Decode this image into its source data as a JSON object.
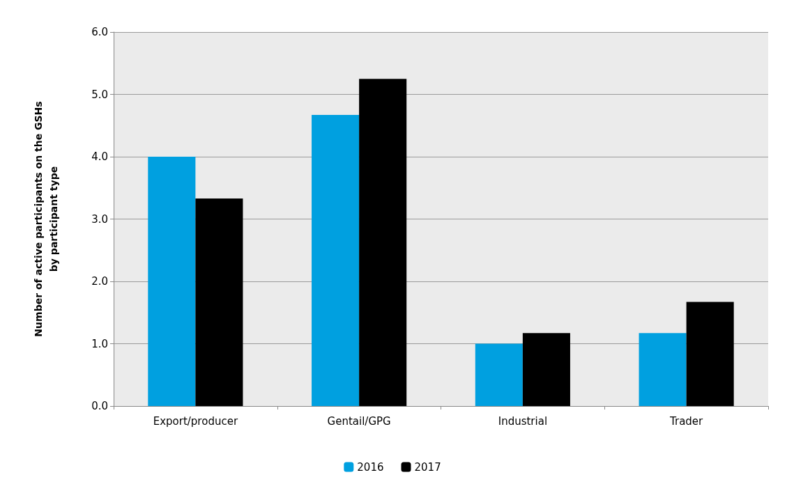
{
  "chart_data": {
    "type": "bar",
    "ylabel": "Number of active participants on the GSHs\nby participant type",
    "categories": [
      "Export/producer",
      "Gentail/GPG",
      "Industrial",
      "Trader"
    ],
    "series": [
      {
        "name": "2016",
        "color": "#00a0e0",
        "values": [
          4.0,
          4.67,
          1.0,
          1.17
        ]
      },
      {
        "name": "2017",
        "color": "#000000",
        "values": [
          3.33,
          5.25,
          1.17,
          1.67
        ]
      }
    ],
    "ylim": [
      0,
      6
    ],
    "yticks": [
      {
        "value": 0,
        "label": "0.0"
      },
      {
        "value": 1,
        "label": "1.0"
      },
      {
        "value": 2,
        "label": "2.0"
      },
      {
        "value": 3,
        "label": "3.0"
      },
      {
        "value": 4,
        "label": "4.0"
      },
      {
        "value": 5,
        "label": "5.0"
      },
      {
        "value": 6,
        "label": "6.0"
      }
    ],
    "grid": "y",
    "legend": "bottom"
  }
}
